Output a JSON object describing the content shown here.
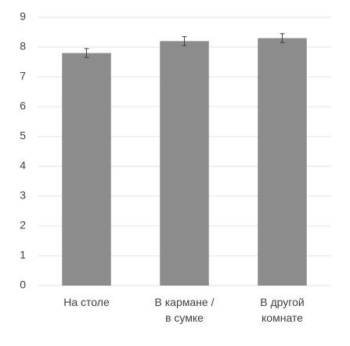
{
  "chart_data": {
    "type": "bar",
    "categories": [
      "На столе",
      "В кармане /\nв сумке",
      "В другой\nкомнате"
    ],
    "values": [
      7.8,
      8.2,
      8.3
    ],
    "errors": [
      0.15,
      0.15,
      0.15
    ],
    "color": "#8c8c8c",
    "error_color": "#404040",
    "ylim": [
      0,
      9
    ],
    "yticks": [
      0,
      1,
      2,
      3,
      4,
      5,
      6,
      7,
      8,
      9
    ],
    "grid": true
  }
}
